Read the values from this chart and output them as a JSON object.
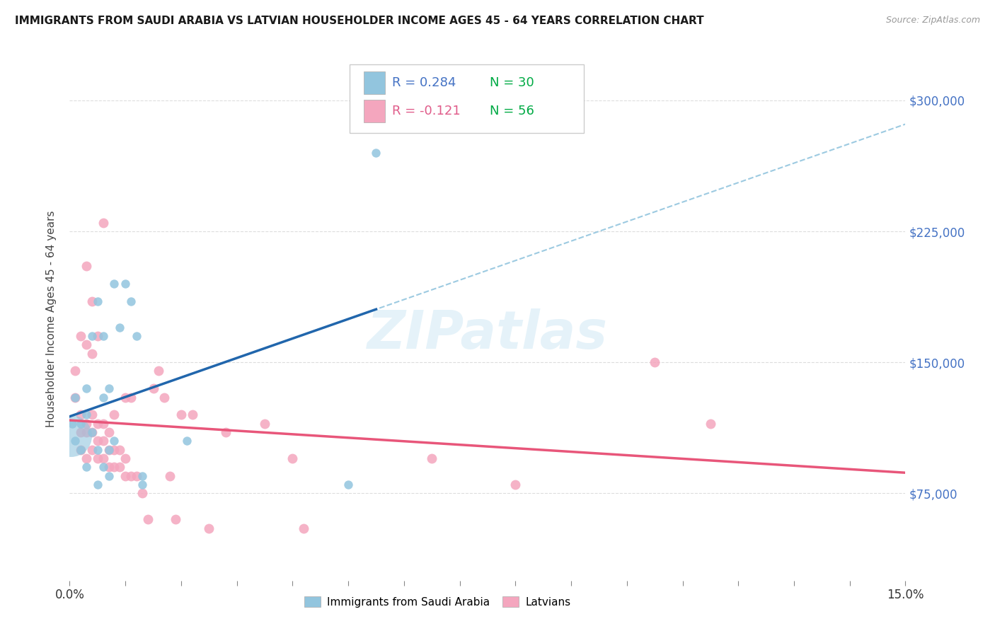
{
  "title": "IMMIGRANTS FROM SAUDI ARABIA VS LATVIAN HOUSEHOLDER INCOME AGES 45 - 64 YEARS CORRELATION CHART",
  "source": "Source: ZipAtlas.com",
  "ylabel": "Householder Income Ages 45 - 64 years",
  "xlim": [
    0.0,
    0.15
  ],
  "ylim": [
    25000,
    325000
  ],
  "yticks": [
    75000,
    150000,
    225000,
    300000
  ],
  "ytick_labels": [
    "$75,000",
    "$150,000",
    "$225,000",
    "$300,000"
  ],
  "blue_color": "#92c5de",
  "pink_color": "#f4a6be",
  "blue_line_color": "#2166ac",
  "pink_line_color": "#e8567a",
  "blue_dashed_color": "#92c5de",
  "watermark_color": "#d0e8f5",
  "saudi_x": [
    0.0005,
    0.001,
    0.001,
    0.002,
    0.002,
    0.003,
    0.003,
    0.003,
    0.004,
    0.004,
    0.005,
    0.005,
    0.005,
    0.006,
    0.006,
    0.006,
    0.007,
    0.007,
    0.007,
    0.008,
    0.008,
    0.009,
    0.01,
    0.011,
    0.012,
    0.013,
    0.013,
    0.021,
    0.05,
    0.055
  ],
  "saudi_y": [
    115000,
    105000,
    130000,
    100000,
    115000,
    90000,
    120000,
    135000,
    110000,
    165000,
    80000,
    100000,
    185000,
    90000,
    130000,
    165000,
    85000,
    100000,
    135000,
    105000,
    195000,
    170000,
    195000,
    185000,
    165000,
    80000,
    85000,
    105000,
    80000,
    270000
  ],
  "saudi_sizes": [
    60,
    60,
    60,
    60,
    60,
    60,
    60,
    60,
    60,
    60,
    60,
    60,
    60,
    60,
    60,
    60,
    60,
    60,
    60,
    60,
    60,
    60,
    60,
    60,
    60,
    60,
    60,
    60,
    60,
    60
  ],
  "saudi_big_x": [
    0.0002
  ],
  "saudi_big_y": [
    108000
  ],
  "saudi_big_size": [
    1800
  ],
  "latvian_x": [
    0.001,
    0.001,
    0.002,
    0.002,
    0.002,
    0.002,
    0.003,
    0.003,
    0.003,
    0.003,
    0.003,
    0.004,
    0.004,
    0.004,
    0.004,
    0.004,
    0.005,
    0.005,
    0.005,
    0.005,
    0.006,
    0.006,
    0.006,
    0.006,
    0.007,
    0.007,
    0.007,
    0.008,
    0.008,
    0.008,
    0.009,
    0.009,
    0.01,
    0.01,
    0.01,
    0.011,
    0.011,
    0.012,
    0.013,
    0.014,
    0.015,
    0.016,
    0.017,
    0.018,
    0.019,
    0.02,
    0.022,
    0.025,
    0.028,
    0.035,
    0.04,
    0.042,
    0.065,
    0.08,
    0.105,
    0.115
  ],
  "latvian_y": [
    130000,
    145000,
    100000,
    110000,
    120000,
    165000,
    95000,
    110000,
    115000,
    160000,
    205000,
    100000,
    110000,
    120000,
    155000,
    185000,
    95000,
    105000,
    115000,
    165000,
    95000,
    105000,
    115000,
    230000,
    90000,
    100000,
    110000,
    90000,
    100000,
    120000,
    90000,
    100000,
    85000,
    95000,
    130000,
    85000,
    130000,
    85000,
    75000,
    60000,
    135000,
    145000,
    130000,
    85000,
    60000,
    120000,
    120000,
    55000,
    110000,
    115000,
    95000,
    55000,
    95000,
    80000,
    150000,
    115000
  ],
  "r_saudi": "0.284",
  "n_saudi": "30",
  "r_latvian": "-0.121",
  "n_latvian": "56",
  "legend_blue_r_color": "#4472C4",
  "legend_blue_n_color": "#00aa44",
  "legend_pink_r_color": "#e05c8a",
  "legend_pink_n_color": "#00aa44",
  "tick_color": "#4472C4"
}
